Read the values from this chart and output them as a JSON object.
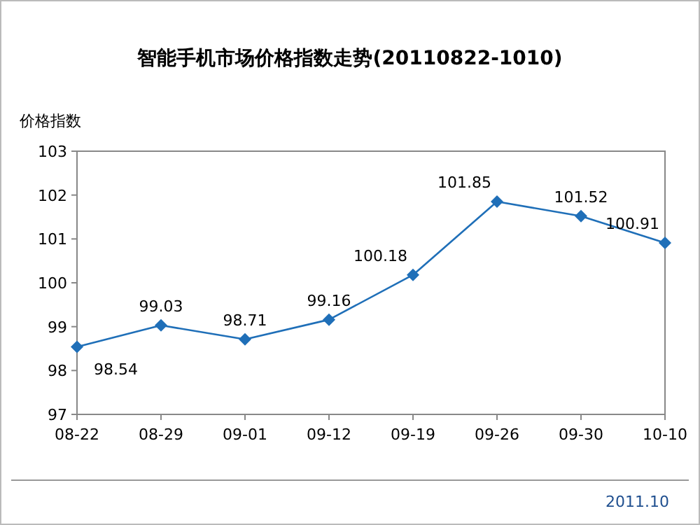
{
  "chart_data": {
    "type": "line",
    "title": "智能手机市场价格指数走势(20110822-1010)",
    "ylabel": "价格指数",
    "categories": [
      "08-22",
      "08-29",
      "09-01",
      "09-12",
      "09-19",
      "09-26",
      "09-30",
      "10-10"
    ],
    "series": [
      {
        "color": "#1f6fb8",
        "values": [
          98.54,
          99.03,
          98.71,
          99.16,
          100.18,
          101.85,
          101.52,
          100.91
        ]
      }
    ],
    "ylim": [
      97,
      103
    ],
    "yticks": [
      97,
      98,
      99,
      100,
      101,
      102,
      103
    ],
    "data_labels": true,
    "marker": "diamond",
    "line_style": "solid",
    "grid": false,
    "annotations": [
      "2011.10"
    ]
  }
}
